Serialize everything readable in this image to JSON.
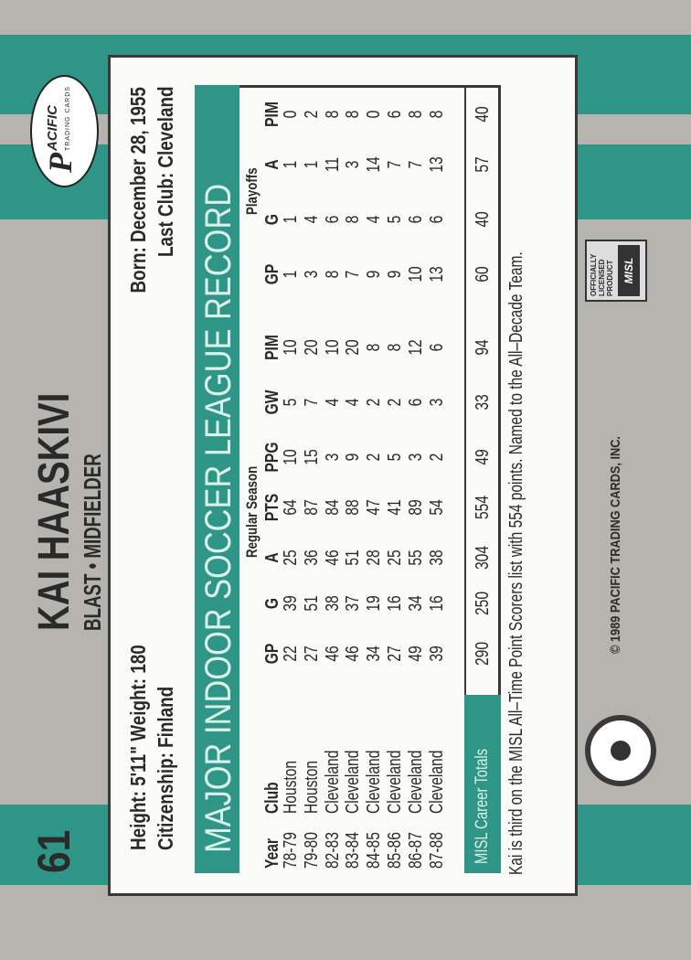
{
  "card_number": "61",
  "player": {
    "name": "KAI HAASKIVI",
    "team_position": "BLAST • MIDFIELDER"
  },
  "bio": {
    "height_weight": "Height: 5'11\"  Weight: 180",
    "citizenship": "Citizenship: Finland",
    "born": "Born: December 28, 1955",
    "last_club": "Last Club: Cleveland"
  },
  "record_title": "MAJOR INDOOR SOCCER LEAGUE RECORD",
  "group_labels": {
    "regular": "Regular Season",
    "playoffs": "Playoffs"
  },
  "columns": [
    "Year",
    "Club",
    "GP",
    "G",
    "A",
    "PTS",
    "PPG",
    "GW",
    "PIM",
    "GP",
    "G",
    "A",
    "PIM"
  ],
  "rows": [
    [
      "78-79",
      "Houston",
      "22",
      "39",
      "25",
      "64",
      "10",
      "5",
      "10",
      "1",
      "1",
      "1",
      "0"
    ],
    [
      "79-80",
      "Houston",
      "27",
      "51",
      "36",
      "87",
      "15",
      "7",
      "20",
      "3",
      "4",
      "1",
      "2"
    ],
    [
      "82-83",
      "Cleveland",
      "46",
      "38",
      "46",
      "84",
      "3",
      "4",
      "10",
      "8",
      "6",
      "11",
      "8"
    ],
    [
      "83-84",
      "Cleveland",
      "46",
      "37",
      "51",
      "88",
      "9",
      "4",
      "20",
      "7",
      "8",
      "3",
      "8"
    ],
    [
      "84-85",
      "Cleveland",
      "34",
      "19",
      "28",
      "47",
      "2",
      "2",
      "8",
      "9",
      "4",
      "14",
      "0"
    ],
    [
      "85-86",
      "Cleveland",
      "27",
      "16",
      "25",
      "41",
      "5",
      "2",
      "8",
      "9",
      "5",
      "7",
      "6"
    ],
    [
      "86-87",
      "Cleveland",
      "49",
      "34",
      "55",
      "89",
      "3",
      "6",
      "12",
      "10",
      "6",
      "7",
      "8"
    ],
    [
      "87-88",
      "Cleveland",
      "39",
      "16",
      "38",
      "54",
      "2",
      "3",
      "6",
      "13",
      "6",
      "13",
      "8"
    ]
  ],
  "totals": {
    "label": "MISL Career Totals",
    "values": [
      "290",
      "250",
      "304",
      "554",
      "49",
      "33",
      "94",
      "60",
      "40",
      "57",
      "40"
    ]
  },
  "footnote": "Kai is third on the MISL All–Time Point Scorers list with 554 points. Named to the All–Decade Team.",
  "copyright": "© 1989 PACIFIC TRADING CARDS, INC.",
  "logos": {
    "pacific": "PACIFIC TRADING CARDS",
    "misl": "OFFICIALLY LICENSED PRODUCT MISL"
  },
  "colors": {
    "teal": "#2f9586",
    "gray": "#b6b4ae"
  }
}
